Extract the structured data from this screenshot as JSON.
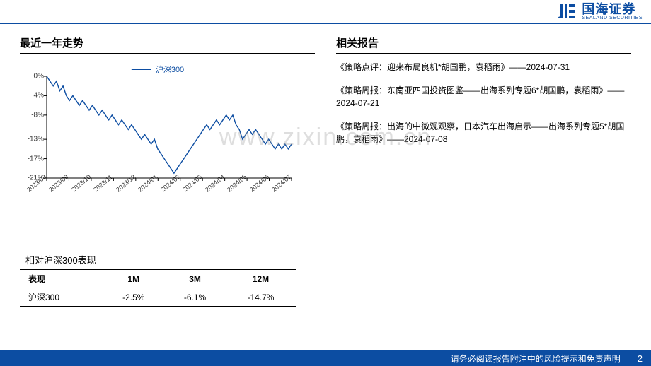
{
  "brand": {
    "cn": "国海证券",
    "en": "SEALAND SECURITIES",
    "color": "#0c4da2"
  },
  "left": {
    "title": "最近一年走势",
    "chart": {
      "type": "line",
      "legend_label": "沪深300",
      "line_color": "#0c4da2",
      "line_width": 1.4,
      "background_color": "#ffffff",
      "axis_color": "#000000",
      "font_size": 10,
      "ylim": [
        -21,
        0
      ],
      "yticks": [
        0,
        -4,
        -8,
        -13,
        -17,
        -21
      ],
      "ytick_labels": [
        "0%",
        "-4%",
        "-8%",
        "-13%",
        "-17%",
        "-21%"
      ],
      "xticks": [
        "2023/08",
        "2023/09",
        "2023/10",
        "2023/11",
        "2023/12",
        "2024/01",
        "2024/02",
        "2024/03",
        "2024/04",
        "2024/05",
        "2024/06",
        "2024/07"
      ],
      "data": [
        0,
        -1,
        -2,
        -1,
        -3,
        -2,
        -4,
        -5,
        -4,
        -5,
        -6,
        -5,
        -6,
        -7,
        -6,
        -7,
        -8,
        -7,
        -8,
        -9,
        -8,
        -9,
        -10,
        -9,
        -10,
        -11,
        -10,
        -11,
        -12,
        -13,
        -12,
        -13,
        -14,
        -13,
        -15,
        -16,
        -17,
        -18,
        -19,
        -20,
        -19,
        -18,
        -17,
        -16,
        -15,
        -14,
        -13,
        -12,
        -11,
        -10,
        -11,
        -10,
        -9,
        -10,
        -9,
        -8,
        -9,
        -8,
        -10,
        -11,
        -13,
        -12,
        -11,
        -12,
        -11,
        -12,
        -13,
        -14,
        -13,
        -14,
        -15,
        -14,
        -15,
        -14,
        -15,
        -14
      ]
    },
    "table_caption": "相对沪深300表现",
    "table": {
      "columns": [
        "表现",
        "1M",
        "3M",
        "12M"
      ],
      "rows": [
        [
          "沪深300",
          "-2.5%",
          "-6.1%",
          "-14.7%"
        ]
      ]
    }
  },
  "right": {
    "title": "相关报告",
    "items": [
      "《策略点评：迎来布局良机*胡国鹏，袁稻雨》——2024-07-31",
      "《策略周报：东南亚四国投资图鉴——出海系列专题6*胡国鹏，袁稻雨》——2024-07-21",
      "《策略周报：出海的中微观观察，日本汽车出海启示——出海系列专题5*胡国鹏，袁稻雨》——2024-07-08"
    ]
  },
  "watermark": "www.zixin.com.cn",
  "footer": {
    "disclaimer": "请务必阅读报告附注中的风险提示和免责声明",
    "page": "2"
  }
}
